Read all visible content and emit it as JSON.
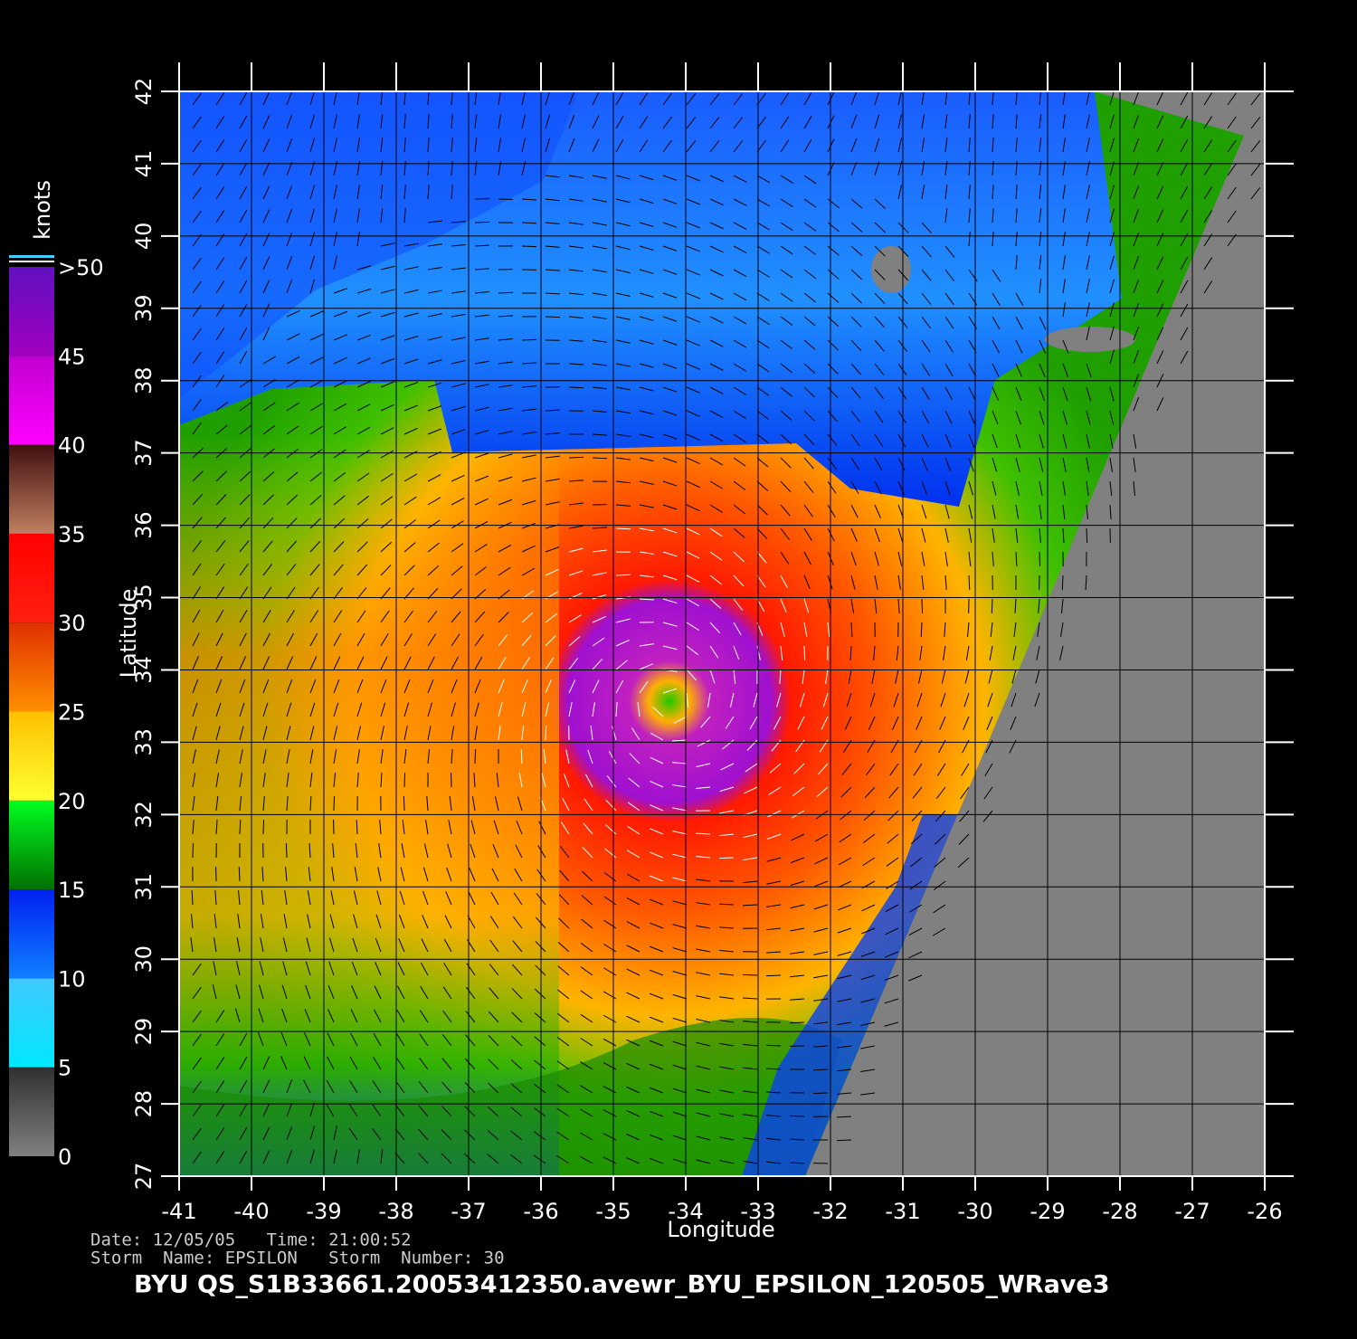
{
  "map": {
    "xlabel": "Longitude",
    "ylabel": "Latitude",
    "xlim": [
      -41,
      -26
    ],
    "ylim": [
      27,
      42
    ],
    "xticks": [
      -41,
      -40,
      -39,
      -38,
      -37,
      -36,
      -35,
      -34,
      -33,
      -32,
      -31,
      -30,
      -29,
      -28,
      -27,
      -26
    ],
    "yticks": [
      27,
      28,
      29,
      30,
      31,
      32,
      33,
      34,
      35,
      36,
      37,
      38,
      39,
      40,
      41,
      42
    ],
    "colorbar": {
      "label": "knots",
      "lim": [
        0,
        50
      ],
      "ticks": [
        0,
        5,
        10,
        15,
        20,
        25,
        30,
        35,
        40,
        45,
        {
          "value": 50,
          "label": ">50"
        }
      ]
    },
    "info": [
      "Date: 12/05/05   Time: 21:00:52",
      "Storm  Name: EPSILON   Storm  Number: 30"
    ],
    "title": "BYU  QS_S1B33661.20053412350.avewr_BYU_EPSILON_120505_WRave3"
  }
}
